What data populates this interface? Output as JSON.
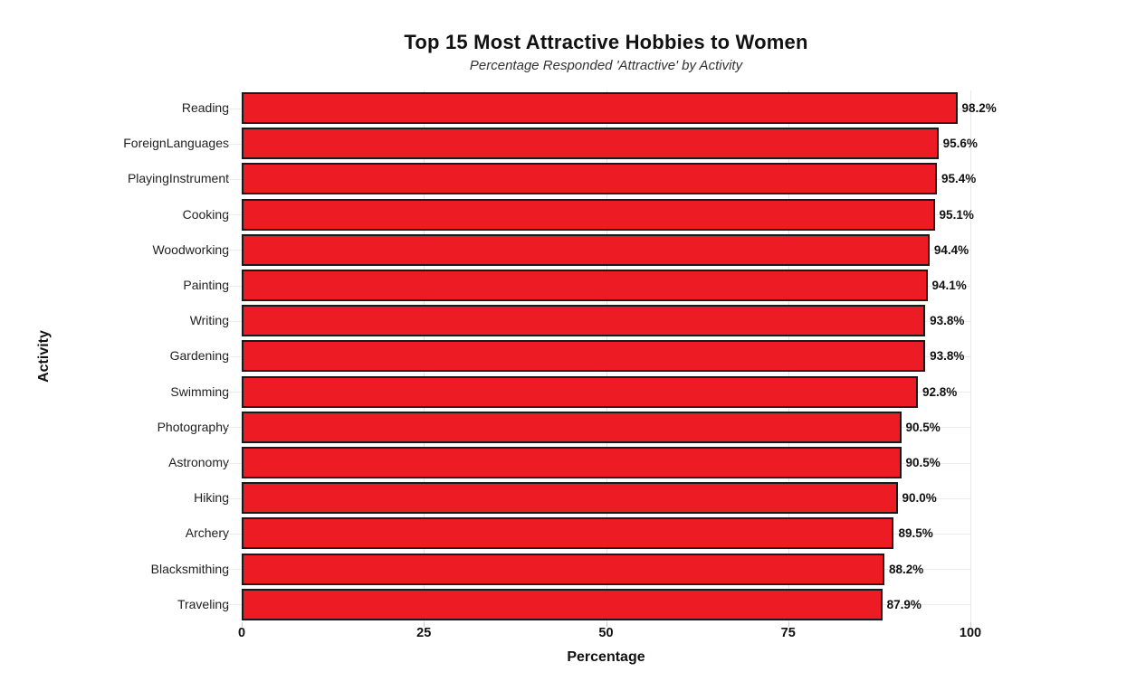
{
  "chart_data": {
    "type": "bar",
    "orientation": "horizontal",
    "title": "Top 15 Most Attractive Hobbies to Women",
    "subtitle": "Percentage Responded 'Attractive' by Activity",
    "xlabel": "Percentage",
    "ylabel": "Activity",
    "categories": [
      "Reading",
      "ForeignLanguages",
      "PlayingInstrument",
      "Cooking",
      "Woodworking",
      "Painting",
      "Writing",
      "Gardening",
      "Swimming",
      "Photography",
      "Astronomy",
      "Hiking",
      "Archery",
      "Blacksmithing",
      "Traveling"
    ],
    "values": [
      98.2,
      95.6,
      95.4,
      95.1,
      94.4,
      94.1,
      93.8,
      93.8,
      92.8,
      90.5,
      90.5,
      90.0,
      89.5,
      88.2,
      87.9
    ],
    "value_labels": [
      "98.2%",
      "95.6%",
      "95.4%",
      "95.1%",
      "94.4%",
      "94.1%",
      "93.8%",
      "93.8%",
      "92.8%",
      "90.5%",
      "90.5%",
      "90.0%",
      "89.5%",
      "88.2%",
      "87.9%"
    ],
    "xlim": [
      0,
      100
    ],
    "xticks": [
      0,
      25,
      50,
      75,
      100
    ],
    "grid": true,
    "legend": "none",
    "bar_color": "#ed1c24",
    "bar_edge_color": "#1a1a1a"
  }
}
